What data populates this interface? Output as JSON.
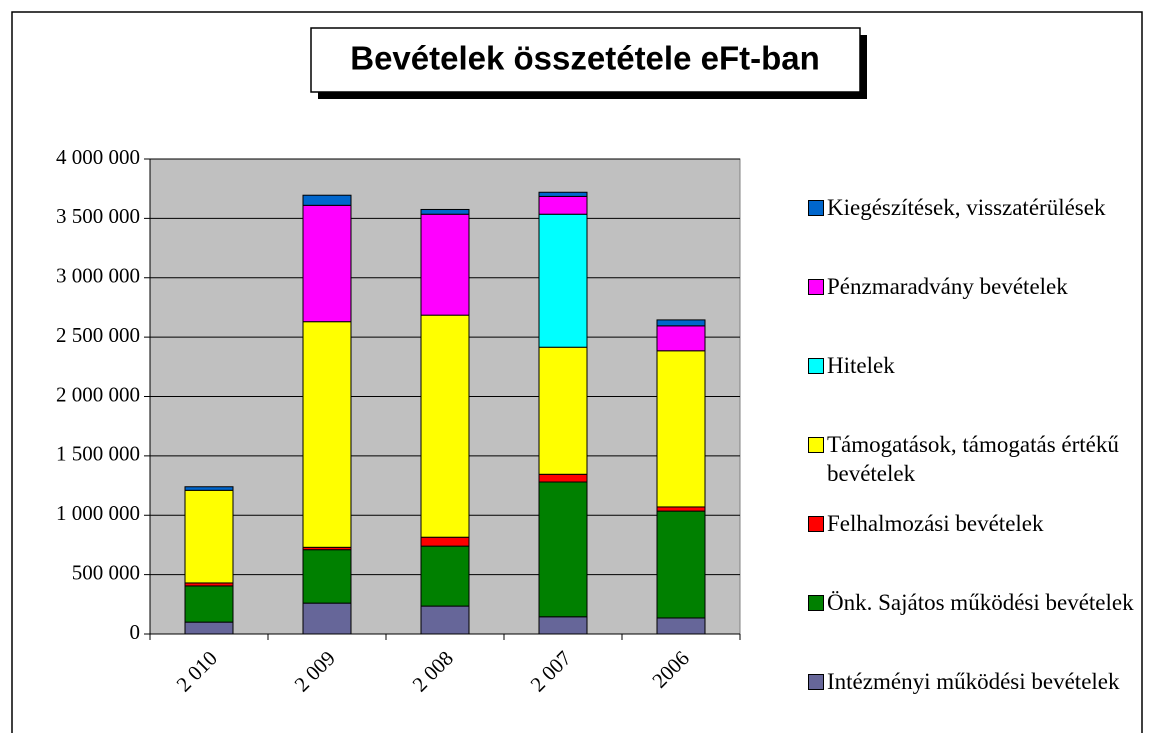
{
  "chart_data": {
    "type": "stacked_bar",
    "title": "Bevételek összetétele eFt-ban",
    "categories": [
      "2 010",
      "2 009",
      "2 008",
      "2 007",
      "2006"
    ],
    "series": [
      {
        "name": "Intézményi működési bevételek",
        "color": "#666699",
        "values": [
          100000,
          260000,
          235000,
          145000,
          135000
        ]
      },
      {
        "name": "Önk. Sajátos működési bevételek",
        "color": "#008000",
        "values": [
          305000,
          450000,
          505000,
          1135000,
          900000
        ]
      },
      {
        "name": "Felhalmozási bevételek",
        "color": "#ff0000",
        "values": [
          25000,
          20000,
          75000,
          65000,
          35000
        ]
      },
      {
        "name": "Támogatások, támogatás értékű bevételek",
        "color": "#ffff00",
        "values": [
          780000,
          1900000,
          1870000,
          1070000,
          1315000
        ]
      },
      {
        "name": "Hitelek",
        "color": "#00ffff",
        "values": [
          0,
          0,
          0,
          1120000,
          0
        ]
      },
      {
        "name": "Pénzmaradvány bevételek",
        "color": "#ff00ff",
        "values": [
          0,
          980000,
          850000,
          150000,
          210000
        ]
      },
      {
        "name": "Kiegészítések, visszatérülések",
        "color": "#0066cc",
        "values": [
          30000,
          85000,
          40000,
          35000,
          50000
        ]
      }
    ],
    "ylim": [
      0,
      4000000
    ],
    "yticks": [
      0,
      {
        "value": 500000,
        "label": "500 000"
      },
      {
        "value": 1000000,
        "label": "1 000 000"
      },
      {
        "value": 1500000,
        "label": "1 500 000"
      },
      {
        "value": 2000000,
        "label": "2 000 000"
      },
      {
        "value": 2500000,
        "label": "2 500 000"
      },
      {
        "value": 3000000,
        "label": "3 000 000"
      },
      {
        "value": 3500000,
        "label": "3 500 000"
      },
      {
        "value": 4000000,
        "label": "4 000 000"
      }
    ],
    "grid": true,
    "plot_background": "#c0c0c0",
    "legend": "right"
  }
}
